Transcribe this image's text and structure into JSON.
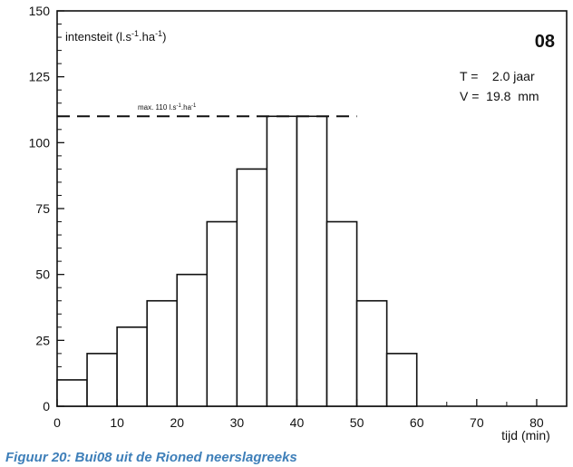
{
  "caption": "Figuur 20: Bui08 uit de Rioned neerslagreeks",
  "chart_data": {
    "type": "bar",
    "ylabel_base": "intensteit (l.s",
    "ylabel_exp1": "-1",
    "ylabel_mid": ".ha",
    "ylabel_exp2": "-1",
    "ylabel_end": ")",
    "xlabel": "tijd (min)",
    "id_label": "08",
    "t_label": "T =    2.0 jaar",
    "v_label": "V =  19.8  mm",
    "max_label_base": "max. 110 l.s",
    "max_label_exp1": "-1",
    "max_label_mid": ".ha",
    "max_label_exp2": "-1",
    "max_value": 110,
    "max_line_x": [
      0,
      50
    ],
    "bins": [
      [
        0,
        5
      ],
      [
        5,
        10
      ],
      [
        10,
        15
      ],
      [
        15,
        20
      ],
      [
        20,
        25
      ],
      [
        25,
        30
      ],
      [
        30,
        35
      ],
      [
        35,
        40
      ],
      [
        40,
        45
      ],
      [
        45,
        50
      ],
      [
        50,
        55
      ],
      [
        55,
        60
      ]
    ],
    "values": [
      10,
      20,
      30,
      40,
      50,
      70,
      90,
      110,
      110,
      70,
      40,
      20
    ],
    "xlim": [
      0,
      85
    ],
    "ylim": [
      0,
      150
    ],
    "xticks": [
      "0",
      "10",
      "20",
      "30",
      "40",
      "50",
      "60",
      "70",
      "80"
    ],
    "yticks": [
      "0",
      "25",
      "50",
      "75",
      "100",
      "125",
      "150"
    ],
    "grid": false
  }
}
